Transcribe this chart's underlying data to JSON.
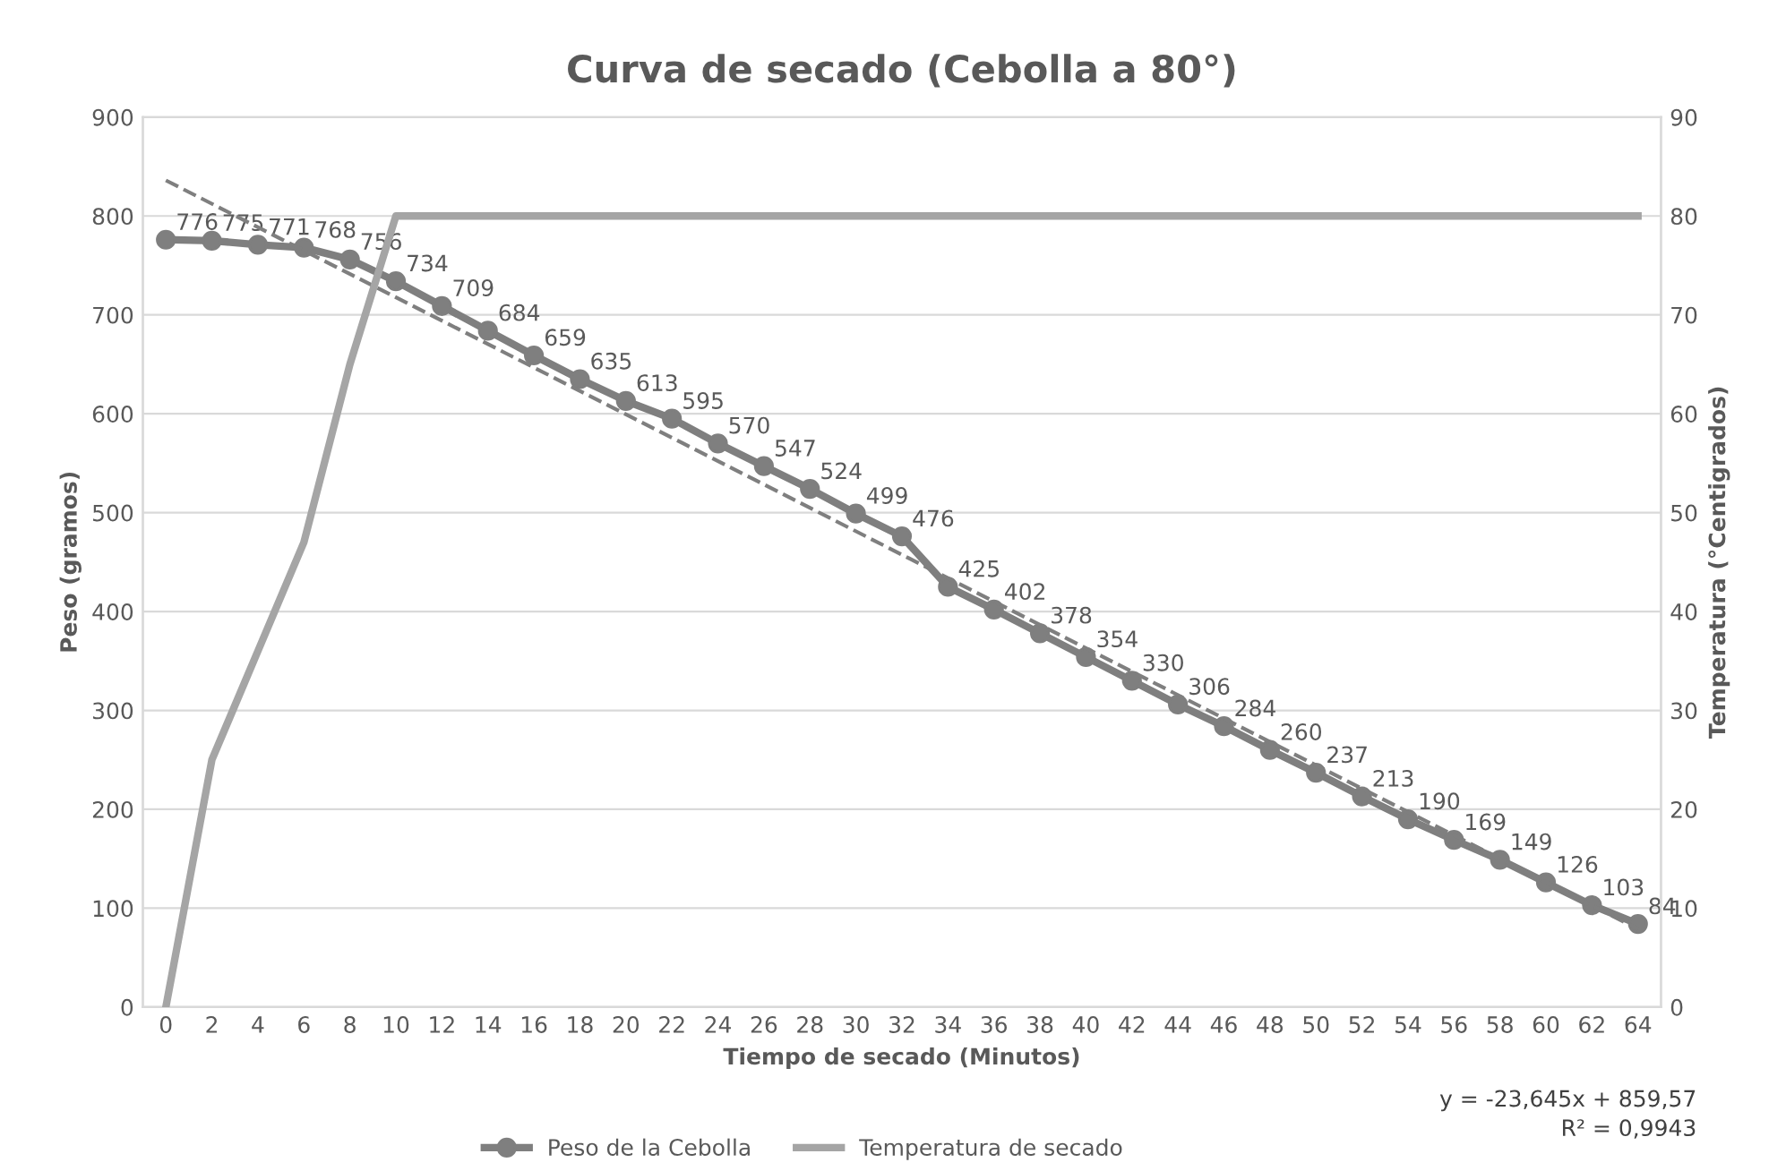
{
  "chart_data": {
    "type": "line",
    "title": "Curva de secado (Cebolla a 80°)",
    "xlabel": "Tiempo de secado (Minutos)",
    "ylabel": "Peso (gramos)",
    "y2label": "Temperatura (°Centigrados)",
    "x": [
      0,
      2,
      4,
      6,
      8,
      10,
      12,
      14,
      16,
      18,
      20,
      22,
      24,
      26,
      28,
      30,
      32,
      34,
      36,
      38,
      40,
      42,
      44,
      46,
      48,
      50,
      52,
      54,
      56,
      58,
      60,
      62,
      64
    ],
    "xlim": [
      -1,
      65
    ],
    "xticks": [
      0,
      2,
      4,
      6,
      8,
      10,
      12,
      14,
      16,
      18,
      20,
      22,
      24,
      26,
      28,
      30,
      32,
      34,
      36,
      38,
      40,
      42,
      44,
      46,
      48,
      50,
      52,
      54,
      56,
      58,
      60,
      62,
      64
    ],
    "ylim": [
      0,
      900
    ],
    "yticks": [
      0,
      100,
      200,
      300,
      400,
      500,
      600,
      700,
      800,
      900
    ],
    "y2lim": [
      0,
      90
    ],
    "y2ticks": [
      0,
      10,
      20,
      30,
      40,
      50,
      60,
      70,
      80,
      90
    ],
    "grid": "y",
    "legend": "bottom",
    "series": [
      {
        "name": "Peso de la Cebolla",
        "color": "#7f7f7f",
        "marker": "circle",
        "data_labels": true,
        "values": [
          776,
          775,
          771,
          768,
          756,
          734,
          709,
          684,
          659,
          635,
          613,
          595,
          570,
          547,
          524,
          499,
          476,
          425,
          402,
          378,
          354,
          330,
          306,
          284,
          260,
          237,
          213,
          190,
          169,
          149,
          126,
          103,
          84
        ]
      },
      {
        "name": "Temperatura de secado",
        "color": "#a5a5a5",
        "axis": "y2",
        "values": [
          0,
          25,
          36,
          47,
          65,
          80,
          80,
          80,
          80,
          80,
          80,
          80,
          80,
          80,
          80,
          80,
          80,
          80,
          80,
          80,
          80,
          80,
          80,
          80,
          80,
          80,
          80,
          80,
          80,
          80,
          80,
          80,
          80
        ]
      },
      {
        "color": "#7f7f7f",
        "line_style": "dashed",
        "x": [
          0,
          64
        ],
        "values": [
          836,
          79
        ]
      }
    ],
    "annotations": [
      "y = -23,645x + 859,57",
      "R² = 0,9943"
    ]
  }
}
